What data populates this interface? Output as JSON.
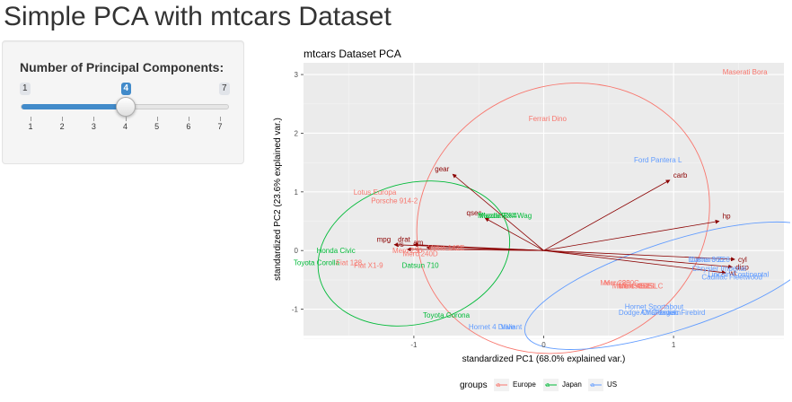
{
  "title": "Simple PCA with mtcars Dataset",
  "slider": {
    "label": "Number of Principal Components:",
    "min": 1,
    "max": 7,
    "value": 4,
    "min_text": "1",
    "max_text": "7",
    "value_text": "4",
    "ticks": [
      "1",
      "2",
      "3",
      "4",
      "5",
      "6",
      "7"
    ]
  },
  "colors": {
    "accent": "#428bca",
    "Europe": "#F8766D",
    "Japan": "#00BA38",
    "US": "#619CFF",
    "arrow": "#8B0000",
    "panel": "#EBEBEB"
  },
  "chart_data": {
    "type": "scatter",
    "title": "mtcars Dataset PCA",
    "xlabel": "standardized PC1 (68.0% explained var.)",
    "ylabel": "standardized PC2 (23.6% explained var.)",
    "xlim": [
      -1.85,
      1.85
    ],
    "ylim": [
      -1.45,
      3.2
    ],
    "x_ticks": [
      "-1",
      "0",
      "1"
    ],
    "y_ticks": [
      "-1",
      "0",
      "1",
      "2",
      "3"
    ],
    "grid": true,
    "legend": {
      "title": "groups",
      "entries": [
        "Europe",
        "Japan",
        "US"
      ],
      "position": "bottom"
    },
    "points": [
      {
        "label": "Maserati Bora",
        "group": "Europe",
        "x": 1.55,
        "y": 3.05
      },
      {
        "label": "Ferrari Dino",
        "group": "Europe",
        "x": 0.03,
        "y": 2.25
      },
      {
        "label": "Ford Pantera L",
        "group": "US",
        "x": 0.88,
        "y": 1.55
      },
      {
        "label": "Lotus Europa",
        "group": "Europe",
        "x": -1.3,
        "y": 1.0
      },
      {
        "label": "Porsche 914-2",
        "group": "Europe",
        "x": -1.15,
        "y": 0.85
      },
      {
        "label": "Mazda RX4",
        "group": "Japan",
        "x": -0.35,
        "y": 0.6
      },
      {
        "label": "Mazda RX4 Wag",
        "group": "Japan",
        "x": -0.3,
        "y": 0.6
      },
      {
        "label": "Volvo 142E",
        "group": "Europe",
        "x": -0.75,
        "y": 0.05
      },
      {
        "label": "Honda Civic",
        "group": "Japan",
        "x": -1.6,
        "y": 0.0
      },
      {
        "label": "Merc 240D",
        "group": "Europe",
        "x": -0.95,
        "y": -0.05
      },
      {
        "label": "Merc 230",
        "group": "Europe",
        "x": -1.05,
        "y": 0.0
      },
      {
        "label": "Toyota Corolla",
        "group": "Japan",
        "x": -1.75,
        "y": -0.2
      },
      {
        "label": "Fiat X1-9",
        "group": "Europe",
        "x": -1.35,
        "y": -0.25
      },
      {
        "label": "Fiat 128",
        "group": "Europe",
        "x": -1.5,
        "y": -0.2
      },
      {
        "label": "Datsun 710",
        "group": "Japan",
        "x": -0.95,
        "y": -0.25
      },
      {
        "label": "Toyota Corona",
        "group": "Japan",
        "x": -0.75,
        "y": -1.1
      },
      {
        "label": "Hornet 4 Drive",
        "group": "US",
        "x": -0.4,
        "y": -1.3
      },
      {
        "label": "Valiant",
        "group": "US",
        "x": -0.25,
        "y": -1.3
      },
      {
        "label": "Merc 280",
        "group": "Europe",
        "x": 0.55,
        "y": -0.55
      },
      {
        "label": "Merc 280C",
        "group": "Europe",
        "x": 0.6,
        "y": -0.55
      },
      {
        "label": "Merc 450SE",
        "group": "Europe",
        "x": 0.68,
        "y": -0.6
      },
      {
        "label": "Merc 450SL",
        "group": "Europe",
        "x": 0.72,
        "y": -0.6
      },
      {
        "label": "Merc 450SLC",
        "group": "Europe",
        "x": 0.75,
        "y": -0.6
      },
      {
        "label": "Hornet Sportabout",
        "group": "US",
        "x": 0.85,
        "y": -0.95
      },
      {
        "label": "Dodge Challenger",
        "group": "US",
        "x": 0.8,
        "y": -1.05
      },
      {
        "label": "AMC Javelin",
        "group": "US",
        "x": 0.9,
        "y": -1.05
      },
      {
        "label": "Pontiac Firebird",
        "group": "US",
        "x": 1.05,
        "y": -1.05
      },
      {
        "label": "Duster 360",
        "group": "US",
        "x": 1.25,
        "y": -0.15
      },
      {
        "label": "Camaro Z28",
        "group": "US",
        "x": 1.28,
        "y": -0.15
      },
      {
        "label": "Chrysler Imperial",
        "group": "US",
        "x": 1.35,
        "y": -0.3
      },
      {
        "label": "Cadillac Fleetwood",
        "group": "US",
        "x": 1.45,
        "y": -0.45
      },
      {
        "label": "Lincoln Continental",
        "group": "US",
        "x": 1.5,
        "y": -0.4
      }
    ],
    "ellipses": [
      {
        "group": "Europe",
        "cx": 0.15,
        "cy": 0.55,
        "rx": 1.15,
        "ry": 2.25
      },
      {
        "group": "Japan",
        "cx": -1.0,
        "cy": -0.05,
        "rx": 0.75,
        "ry": 1.2
      },
      {
        "group": "US",
        "cx": 1.0,
        "cy": -0.6,
        "rx": 1.2,
        "ry": 0.75
      }
    ],
    "arrows": [
      {
        "label": "gear",
        "x": -0.7,
        "y": 1.3
      },
      {
        "label": "carb",
        "x": 0.97,
        "y": 1.2
      },
      {
        "label": "hp",
        "x": 1.35,
        "y": 0.5
      },
      {
        "label": "cyl",
        "x": 1.47,
        "y": -0.15
      },
      {
        "label": "disp",
        "x": 1.45,
        "y": -0.28
      },
      {
        "label": "wt",
        "x": 1.4,
        "y": -0.38
      },
      {
        "label": "drat",
        "x": -1.0,
        "y": 0.1
      },
      {
        "label": "am",
        "x": -0.9,
        "y": 0.05
      },
      {
        "label": "vs",
        "x": -1.05,
        "y": 0.02
      },
      {
        "label": "mpg",
        "x": -1.15,
        "y": 0.1
      },
      {
        "label": "qsec",
        "x": -0.45,
        "y": 0.55
      }
    ]
  }
}
